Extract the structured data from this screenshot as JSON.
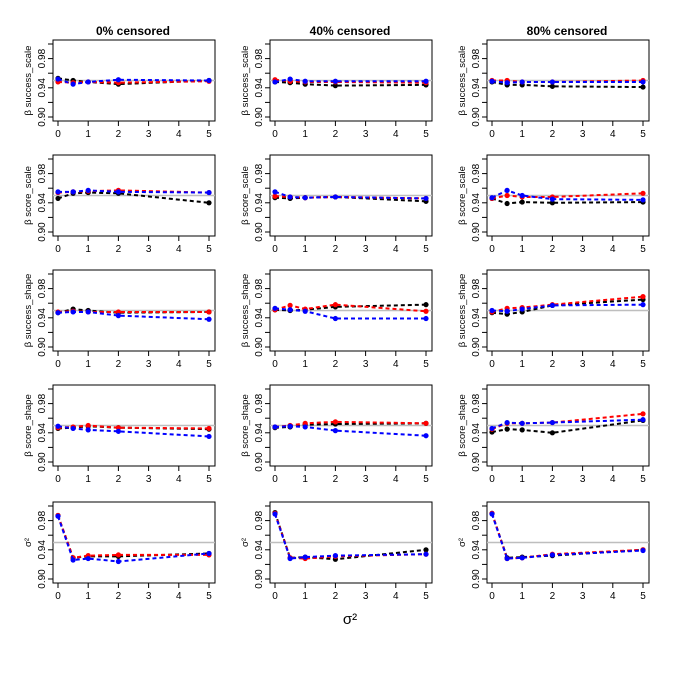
{
  "figure": {
    "column_titles": [
      "0% censored",
      "40% censored",
      "80% censored"
    ],
    "row_labels": [
      "β success_scale",
      "β score_scale",
      "β success_shape",
      "β score_shape",
      "σ²"
    ],
    "xlabel": "σ²"
  },
  "colors": {
    "black": "#000000",
    "red": "#ff0000",
    "blue": "#0000ff",
    "reference": "#bebebe"
  },
  "chart_data": {
    "type": "line",
    "x": [
      0,
      0.5,
      1,
      2,
      5
    ],
    "xticks": [
      "0",
      "1",
      "2",
      "3",
      "4",
      "5"
    ],
    "xlim": [
      0,
      5
    ],
    "ylim": [
      0.9,
      1.0
    ],
    "yticks": [
      "0.90",
      "0.94",
      "0.98"
    ],
    "reference_line": 0.95,
    "series_names": [
      "black",
      "red",
      "blue"
    ],
    "panels": [
      {
        "row": "β success_scale",
        "col": "0% censored",
        "series": [
          {
            "name": "black",
            "values": [
              0.953,
              0.95,
              0.948,
              0.945,
              0.95
            ]
          },
          {
            "name": "red",
            "values": [
              0.948,
              0.947,
              0.948,
              0.947,
              0.949
            ]
          },
          {
            "name": "blue",
            "values": [
              0.952,
              0.945,
              0.948,
              0.951,
              0.95
            ]
          }
        ]
      },
      {
        "row": "β success_scale",
        "col": "40% censored",
        "series": [
          {
            "name": "black",
            "values": [
              0.948,
              0.947,
              0.945,
              0.943,
              0.944
            ]
          },
          {
            "name": "red",
            "values": [
              0.951,
              0.949,
              0.948,
              0.948,
              0.947
            ]
          },
          {
            "name": "blue",
            "values": [
              0.948,
              0.952,
              0.949,
              0.949,
              0.949
            ]
          }
        ]
      },
      {
        "row": "β success_scale",
        "col": "80% censored",
        "series": [
          {
            "name": "black",
            "values": [
              0.948,
              0.944,
              0.944,
              0.942,
              0.941
            ]
          },
          {
            "name": "red",
            "values": [
              0.95,
              0.95,
              0.948,
              0.948,
              0.95
            ]
          },
          {
            "name": "blue",
            "values": [
              0.949,
              0.947,
              0.948,
              0.948,
              0.948
            ]
          }
        ]
      },
      {
        "row": "β score_scale",
        "col": "0% censored",
        "series": [
          {
            "name": "black",
            "values": [
              0.946,
              0.953,
              0.954,
              0.953,
              0.94
            ]
          },
          {
            "name": "red",
            "values": [
              0.954,
              0.955,
              0.956,
              0.957,
              0.954
            ]
          },
          {
            "name": "blue",
            "values": [
              0.955,
              0.955,
              0.957,
              0.955,
              0.954
            ]
          }
        ]
      },
      {
        "row": "β score_scale",
        "col": "40% censored",
        "series": [
          {
            "name": "black",
            "values": [
              0.947,
              0.946,
              0.947,
              0.948,
              0.942
            ]
          },
          {
            "name": "red",
            "values": [
              0.949,
              0.948,
              0.947,
              0.948,
              0.946
            ]
          },
          {
            "name": "blue",
            "values": [
              0.955,
              0.948,
              0.947,
              0.948,
              0.946
            ]
          }
        ]
      },
      {
        "row": "β score_scale",
        "col": "80% censored",
        "series": [
          {
            "name": "black",
            "values": [
              0.946,
              0.939,
              0.941,
              0.94,
              0.941
            ]
          },
          {
            "name": "red",
            "values": [
              0.946,
              0.95,
              0.948,
              0.948,
              0.953
            ]
          },
          {
            "name": "blue",
            "values": [
              0.947,
              0.957,
              0.95,
              0.945,
              0.944
            ]
          }
        ]
      },
      {
        "row": "β success_shape",
        "col": "0% censored",
        "series": [
          {
            "name": "black",
            "values": [
              0.947,
              0.952,
              0.95,
              0.947,
              0.948
            ]
          },
          {
            "name": "red",
            "values": [
              0.948,
              0.949,
              0.948,
              0.948,
              0.948
            ]
          },
          {
            "name": "blue",
            "values": [
              0.947,
              0.948,
              0.948,
              0.943,
              0.938
            ]
          }
        ]
      },
      {
        "row": "β success_shape",
        "col": "40% censored",
        "series": [
          {
            "name": "black",
            "values": [
              0.951,
              0.95,
              0.951,
              0.955,
              0.958
            ]
          },
          {
            "name": "red",
            "values": [
              0.951,
              0.957,
              0.952,
              0.958,
              0.949
            ]
          },
          {
            "name": "blue",
            "values": [
              0.953,
              0.951,
              0.949,
              0.939,
              0.939
            ]
          }
        ]
      },
      {
        "row": "β success_shape",
        "col": "80% censored",
        "series": [
          {
            "name": "black",
            "values": [
              0.947,
              0.945,
              0.948,
              0.957,
              0.965
            ]
          },
          {
            "name": "red",
            "values": [
              0.948,
              0.953,
              0.954,
              0.958,
              0.969
            ]
          },
          {
            "name": "blue",
            "values": [
              0.95,
              0.949,
              0.952,
              0.957,
              0.958
            ]
          }
        ]
      },
      {
        "row": "β score_shape",
        "col": "0% censored",
        "series": [
          {
            "name": "black",
            "values": [
              0.946,
              0.947,
              0.949,
              0.947,
              0.945
            ]
          },
          {
            "name": "red",
            "values": [
              0.947,
              0.948,
              0.95,
              0.947,
              0.946
            ]
          },
          {
            "name": "blue",
            "values": [
              0.949,
              0.946,
              0.944,
              0.942,
              0.935
            ]
          }
        ]
      },
      {
        "row": "β score_shape",
        "col": "40% censored",
        "series": [
          {
            "name": "black",
            "values": [
              0.947,
              0.948,
              0.951,
              0.952,
              0.953
            ]
          },
          {
            "name": "red",
            "values": [
              0.948,
              0.95,
              0.953,
              0.955,
              0.953
            ]
          },
          {
            "name": "blue",
            "values": [
              0.948,
              0.949,
              0.948,
              0.943,
              0.936
            ]
          }
        ]
      },
      {
        "row": "β score_shape",
        "col": "80% censored",
        "series": [
          {
            "name": "black",
            "values": [
              0.941,
              0.945,
              0.944,
              0.94,
              0.957
            ]
          },
          {
            "name": "red",
            "values": [
              0.945,
              0.953,
              0.953,
              0.954,
              0.966
            ]
          },
          {
            "name": "blue",
            "values": [
              0.946,
              0.954,
              0.953,
              0.954,
              0.958
            ]
          }
        ]
      },
      {
        "row": "σ²",
        "col": "0% censored",
        "series": [
          {
            "name": "black",
            "values": [
              0.987,
              0.929,
              0.931,
              0.931,
              0.935
            ]
          },
          {
            "name": "red",
            "values": [
              0.987,
              0.929,
              0.932,
              0.933,
              0.933
            ]
          },
          {
            "name": "blue",
            "values": [
              0.986,
              0.926,
              0.928,
              0.924,
              0.935
            ]
          }
        ]
      },
      {
        "row": "σ²",
        "col": "40% censored",
        "series": [
          {
            "name": "black",
            "values": [
              0.991,
              0.929,
              0.93,
              0.927,
              0.94
            ]
          },
          {
            "name": "red",
            "values": [
              0.99,
              0.929,
              0.928,
              0.931,
              0.934
            ]
          },
          {
            "name": "blue",
            "values": [
              0.989,
              0.928,
              0.93,
              0.932,
              0.934
            ]
          }
        ]
      },
      {
        "row": "σ²",
        "col": "80% censored",
        "series": [
          {
            "name": "black",
            "values": [
              0.99,
              0.929,
              0.93,
              0.932,
              0.94
            ]
          },
          {
            "name": "red",
            "values": [
              0.99,
              0.928,
              0.929,
              0.934,
              0.94
            ]
          },
          {
            "name": "blue",
            "values": [
              0.989,
              0.928,
              0.929,
              0.933,
              0.939
            ]
          }
        ]
      }
    ]
  }
}
